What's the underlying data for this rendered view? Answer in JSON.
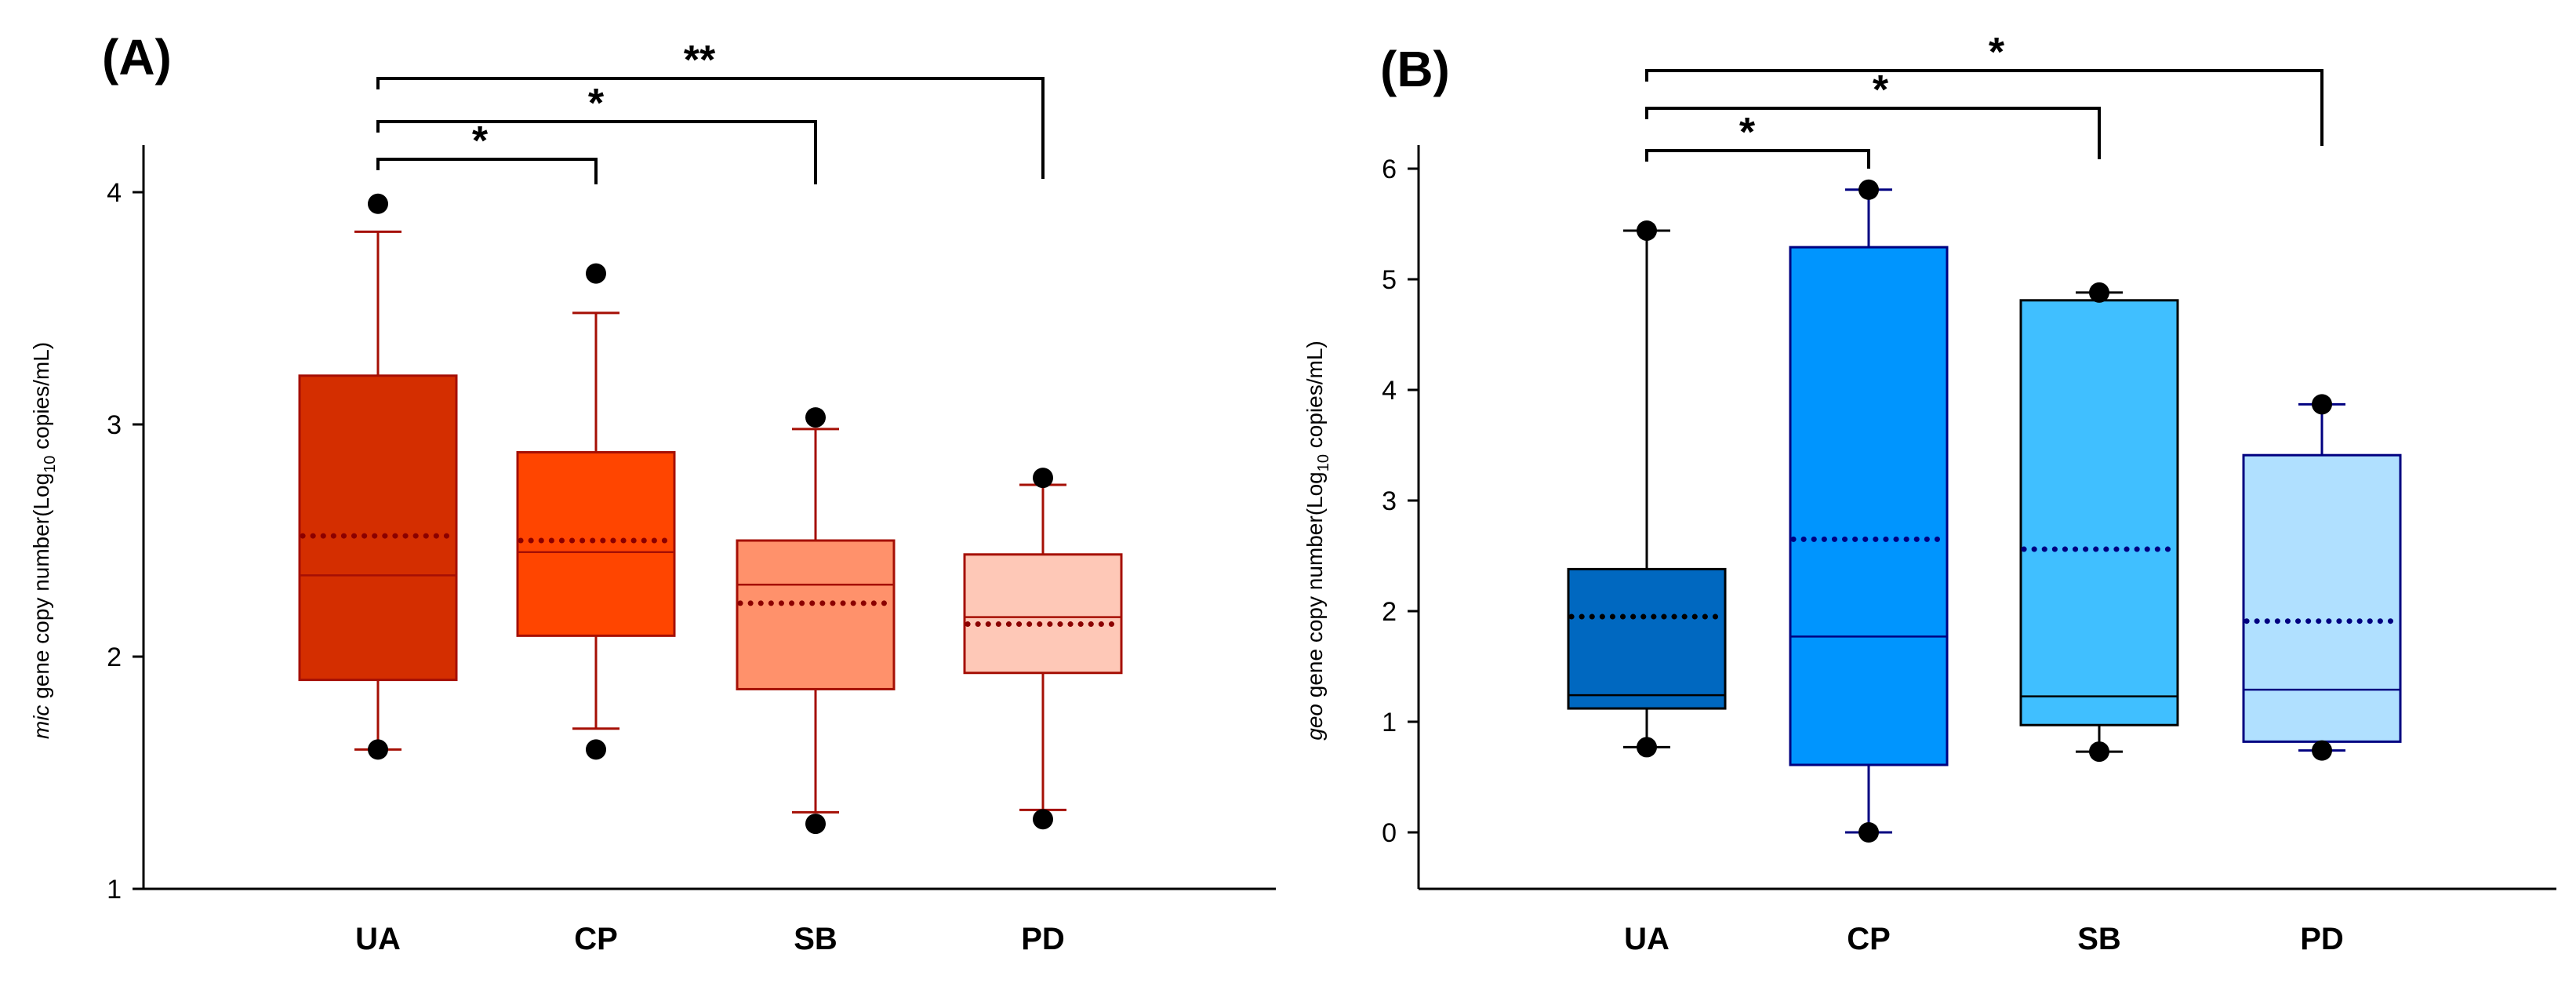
{
  "chart_data": [
    {
      "type": "box",
      "panel_label": "(A)",
      "title": "",
      "xlabel": "",
      "ylabel": {
        "gene": "mic",
        "text": " gene copy number(Log",
        "subscript": "10",
        "suffix": " copies/mL)"
      },
      "ylim": [
        1,
        4.2
      ],
      "yticks": [
        "1",
        "2",
        "3",
        "4"
      ],
      "categories": [
        "UA",
        "CP",
        "SB",
        "PD"
      ],
      "box_style": {
        "line_color": "#a50f05",
        "mean_color": "#8b0000"
      },
      "groups": [
        {
          "name": "UA",
          "color": "#d42e00",
          "whisker_low": 1.6,
          "q1": 1.9,
          "median": 2.35,
          "mean": 2.52,
          "q3": 3.21,
          "whisker_high": 3.83,
          "outliers": [
            1.6,
            3.95
          ]
        },
        {
          "name": "CP",
          "color": "#ff4500",
          "whisker_low": 1.69,
          "q1": 2.09,
          "median": 2.45,
          "mean": 2.5,
          "q3": 2.88,
          "whisker_high": 3.48,
          "outliers": [
            1.6,
            3.65
          ]
        },
        {
          "name": "SB",
          "color": "#ff916b",
          "whisker_low": 1.33,
          "q1": 1.86,
          "median": 2.31,
          "mean": 2.23,
          "q3": 2.5,
          "whisker_high": 2.98,
          "outliers": [
            1.28,
            3.03
          ]
        },
        {
          "name": "PD",
          "color": "#fec8b7",
          "whisker_low": 1.34,
          "q1": 1.93,
          "median": 2.17,
          "mean": 2.14,
          "q3": 2.44,
          "whisker_high": 2.74,
          "outliers": [
            1.3,
            2.77
          ]
        }
      ],
      "significance": [
        {
          "from": "UA",
          "to": "CP",
          "label": "*",
          "end_value": 4.13
        },
        {
          "from": "UA",
          "to": "SB",
          "label": "*",
          "end_value": 4.06
        },
        {
          "from": "UA",
          "to": "PD",
          "label": "**",
          "end_value": 4.06
        }
      ]
    },
    {
      "type": "box",
      "panel_label": "(B)",
      "title": "",
      "xlabel": "",
      "ylabel": {
        "gene": "geo",
        "text": " gene copy number(Log",
        "subscript": "10",
        "suffix": " copies/mL)"
      },
      "ylim": [
        -0.5,
        6.2
      ],
      "yticks": [
        "0",
        "1",
        "2",
        "3",
        "4",
        "5",
        "6"
      ],
      "categories": [
        "UA",
        "CP",
        "SB",
        "PD"
      ],
      "box_style": {
        "line_color": "#000080",
        "mean_color": "#000080"
      },
      "groups": [
        {
          "name": "UA",
          "color": "#0068c0",
          "whisker_low": 0.77,
          "q1": 1.12,
          "median": 1.24,
          "mean": 1.95,
          "q3": 2.38,
          "whisker_high": 5.44,
          "outliers": [
            0.77,
            5.44
          ],
          "mean_color": "#000000",
          "line_color": "#000000"
        },
        {
          "name": "CP",
          "color": "#0095fe",
          "whisker_low": 0.0,
          "q1": 0.61,
          "median": 1.77,
          "mean": 2.65,
          "q3": 5.29,
          "whisker_high": 5.81,
          "outliers": [
            0.0,
            5.81
          ]
        },
        {
          "name": "SB",
          "color": "#40bfff",
          "whisker_low": 0.73,
          "q1": 0.97,
          "median": 1.23,
          "mean": 2.56,
          "q3": 4.81,
          "whisker_high": 4.88,
          "outliers": [
            0.73,
            4.88
          ],
          "line_color": "#000000"
        },
        {
          "name": "PD",
          "color": "#b0e0ff",
          "whisker_low": 0.74,
          "q1": 0.82,
          "median": 1.29,
          "mean": 1.91,
          "q3": 3.41,
          "whisker_high": 3.87,
          "outliers": [
            0.74,
            3.87
          ]
        }
      ],
      "significance": [
        {
          "from": "UA",
          "to": "CP",
          "label": "*",
          "end_value": 6.1
        },
        {
          "from": "UA",
          "to": "SB",
          "label": "*",
          "end_value": 6.1
        },
        {
          "from": "UA",
          "to": "PD",
          "label": "*",
          "end_value": 6.1
        }
      ]
    }
  ]
}
